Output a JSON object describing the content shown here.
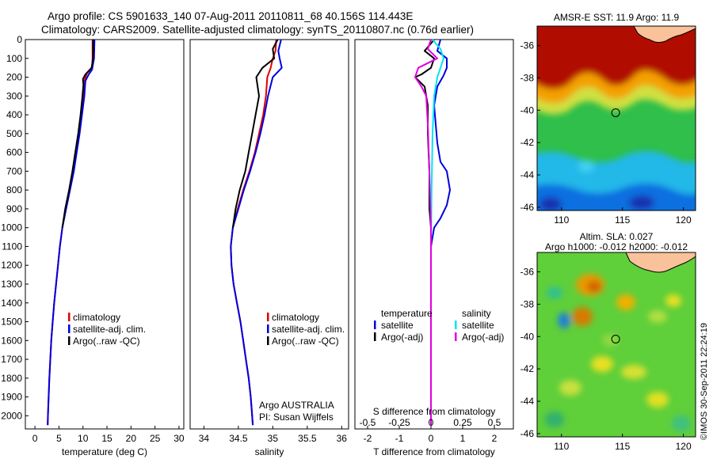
{
  "header": {
    "line1": "Argo profile: CS 5901633_140 07-Aug-2011 20110811_68 40.156S 114.443E",
    "line2": "Climatology: CARS2009. Satellite-adjusted climatology: synTS_20110807.nc (0.76d earlier)"
  },
  "colors": {
    "climatology": "#e00000",
    "satellite": "#0000e0",
    "argo": "#000000",
    "sal_satellite": "#00e5ee",
    "sal_argo": "#e000e0"
  },
  "legend_profiles": [
    {
      "label": "climatology",
      "color_key": "climatology"
    },
    {
      "label": "satellite-adj. clim.",
      "color_key": "satellite"
    },
    {
      "label": "Argo(..raw -QC)",
      "color_key": "argo"
    }
  ],
  "legend_diff": {
    "temperature_title": "temperature",
    "salinity_title": "salinity",
    "temperature_items": [
      {
        "label": "satellite",
        "color_key": "satellite"
      },
      {
        "label": "Argo(-adj)",
        "color_key": "argo"
      }
    ],
    "salinity_items": [
      {
        "label": "satellite",
        "color_key": "sal_satellite"
      },
      {
        "label": "Argo(-adj)",
        "color_key": "sal_argo"
      }
    ]
  },
  "annotations": {
    "float_owner": "Argo AUSTRALIA",
    "pi": "PI: Susan Wijffels",
    "copyright": "©IMOS 30-Sep-2011 22:24:19"
  },
  "chart_data": [
    {
      "type": "line",
      "xlabel": "temperature (deg C)",
      "ylabel": "",
      "xlim": [
        -2,
        31
      ],
      "ylim": [
        2070,
        0
      ],
      "xticks": [
        0,
        5,
        10,
        15,
        20,
        25,
        30
      ],
      "yticks": [
        0,
        100,
        200,
        300,
        400,
        500,
        600,
        700,
        800,
        900,
        1000,
        1100,
        1200,
        1300,
        1400,
        1500,
        1600,
        1700,
        1800,
        1900,
        2000
      ],
      "series": [
        {
          "name": "climatology",
          "color_key": "climatology",
          "points": [
            [
              12.0,
              0
            ],
            [
              12.0,
              100
            ],
            [
              11.9,
              150
            ],
            [
              10.8,
              180
            ],
            [
              10.3,
              220
            ],
            [
              10.1,
              300
            ],
            [
              9.7,
              400
            ],
            [
              9.2,
              500
            ],
            [
              8.6,
              600
            ],
            [
              8.0,
              700
            ],
            [
              7.2,
              800
            ],
            [
              6.4,
              900
            ],
            [
              5.7,
              1000
            ],
            [
              5.2,
              1100
            ],
            [
              4.8,
              1200
            ],
            [
              4.4,
              1300
            ],
            [
              4.0,
              1400
            ],
            [
              3.7,
              1500
            ],
            [
              3.4,
              1600
            ],
            [
              3.2,
              1700
            ],
            [
              3.0,
              1800
            ],
            [
              2.85,
              1900
            ],
            [
              2.7,
              2000
            ],
            [
              2.65,
              2050
            ]
          ]
        },
        {
          "name": "satellite-adj. clim.",
          "color_key": "satellite",
          "points": [
            [
              12.4,
              0
            ],
            [
              12.3,
              100
            ],
            [
              11.9,
              160
            ],
            [
              11.2,
              185
            ],
            [
              10.5,
              220
            ],
            [
              10.3,
              300
            ],
            [
              9.8,
              400
            ],
            [
              9.3,
              500
            ],
            [
              8.7,
              600
            ],
            [
              8.1,
              700
            ],
            [
              7.3,
              800
            ],
            [
              6.5,
              900
            ],
            [
              5.7,
              1000
            ],
            [
              5.2,
              1100
            ],
            [
              4.8,
              1200
            ],
            [
              4.4,
              1300
            ],
            [
              4.0,
              1400
            ],
            [
              3.7,
              1500
            ],
            [
              3.4,
              1600
            ],
            [
              3.2,
              1700
            ],
            [
              3.0,
              1800
            ],
            [
              2.85,
              1900
            ],
            [
              2.7,
              2000
            ],
            [
              2.65,
              2050
            ]
          ]
        },
        {
          "name": "Argo(..raw -QC)",
          "color_key": "argo",
          "points": [
            [
              12.1,
              0
            ],
            [
              12.1,
              100
            ],
            [
              11.8,
              150
            ],
            [
              10.5,
              185
            ],
            [
              10.0,
              210
            ],
            [
              10.1,
              240
            ],
            [
              9.9,
              300
            ],
            [
              9.5,
              400
            ],
            [
              9.0,
              500
            ],
            [
              8.4,
              600
            ],
            [
              7.8,
              700
            ],
            [
              7.1,
              800
            ],
            [
              6.3,
              900
            ],
            [
              5.7,
              1000
            ]
          ]
        }
      ]
    },
    {
      "type": "line",
      "xlabel": "salinity",
      "ylabel": "",
      "xlim": [
        33.8,
        36.1
      ],
      "ylim": [
        2070,
        0
      ],
      "xticks": [
        34,
        34.5,
        35,
        35.5,
        36
      ],
      "tick_labels": [
        "34",
        "34.5",
        "35",
        "35.5",
        "36"
      ],
      "series": [
        {
          "name": "climatology",
          "color_key": "climatology",
          "points": [
            [
              35.05,
              0
            ],
            [
              35.04,
              60
            ],
            [
              35.0,
              100
            ],
            [
              34.97,
              150
            ],
            [
              34.92,
              200
            ],
            [
              34.9,
              300
            ],
            [
              34.86,
              400
            ],
            [
              34.8,
              500
            ],
            [
              34.74,
              600
            ],
            [
              34.66,
              700
            ],
            [
              34.57,
              800
            ],
            [
              34.49,
              900
            ],
            [
              34.42,
              1000
            ],
            [
              34.39,
              1100
            ],
            [
              34.4,
              1200
            ],
            [
              34.43,
              1300
            ],
            [
              34.48,
              1400
            ],
            [
              34.53,
              1500
            ],
            [
              34.57,
              1600
            ],
            [
              34.61,
              1700
            ],
            [
              34.65,
              1800
            ],
            [
              34.68,
              1900
            ],
            [
              34.7,
              2000
            ],
            [
              34.71,
              2050
            ]
          ]
        },
        {
          "name": "satellite-adj. clim.",
          "color_key": "satellite",
          "points": [
            [
              35.12,
              0
            ],
            [
              35.08,
              60
            ],
            [
              35.1,
              100
            ],
            [
              35.13,
              150
            ],
            [
              35.0,
              200
            ],
            [
              34.93,
              300
            ],
            [
              34.88,
              400
            ],
            [
              34.82,
              500
            ],
            [
              34.75,
              600
            ],
            [
              34.67,
              700
            ],
            [
              34.58,
              800
            ],
            [
              34.5,
              900
            ],
            [
              34.42,
              1000
            ],
            [
              34.39,
              1100
            ],
            [
              34.4,
              1200
            ],
            [
              34.43,
              1300
            ],
            [
              34.48,
              1400
            ],
            [
              34.53,
              1500
            ],
            [
              34.57,
              1600
            ],
            [
              34.61,
              1700
            ],
            [
              34.65,
              1800
            ],
            [
              34.68,
              1900
            ],
            [
              34.7,
              2000
            ],
            [
              34.71,
              2050
            ]
          ]
        },
        {
          "name": "Argo(..raw -QC)",
          "color_key": "argo",
          "points": [
            [
              35.07,
              0
            ],
            [
              35.0,
              50
            ],
            [
              35.02,
              100
            ],
            [
              34.85,
              150
            ],
            [
              34.76,
              200
            ],
            [
              34.78,
              250
            ],
            [
              34.8,
              300
            ],
            [
              34.75,
              400
            ],
            [
              34.7,
              500
            ],
            [
              34.65,
              600
            ],
            [
              34.6,
              700
            ],
            [
              34.52,
              800
            ],
            [
              34.46,
              900
            ],
            [
              34.42,
              1000
            ]
          ]
        }
      ]
    },
    {
      "type": "line",
      "xlabel": "T difference from climatology",
      "ylabel": "",
      "top_axis_label": "S difference from climatology",
      "xlim": [
        -2.4,
        2.6
      ],
      "ylim": [
        2070,
        0
      ],
      "xticks": [
        -2,
        -1,
        0,
        1,
        2
      ],
      "top_ticks": [
        "-0.5",
        "-0.25",
        "0",
        "0.25",
        "0.5"
      ],
      "series": [
        {
          "name": "temperature satellite",
          "color_key": "satellite",
          "points": [
            [
              0.3,
              0
            ],
            [
              0.2,
              60
            ],
            [
              0.5,
              100
            ],
            [
              0.5,
              150
            ],
            [
              0.4,
              190
            ],
            [
              0.2,
              250
            ],
            [
              0.1,
              350
            ],
            [
              0.15,
              450
            ],
            [
              0.2,
              550
            ],
            [
              0.3,
              650
            ],
            [
              0.5,
              700
            ],
            [
              0.6,
              800
            ],
            [
              0.5,
              880
            ],
            [
              0.3,
              950
            ],
            [
              0.1,
              1000
            ],
            [
              0.0,
              1100
            ],
            [
              0.0,
              2050
            ]
          ]
        },
        {
          "name": "temperature Argo(-adj)",
          "color_key": "argo",
          "points": [
            [
              0.1,
              0
            ],
            [
              -0.2,
              60
            ],
            [
              0.1,
              100
            ],
            [
              0.0,
              150
            ],
            [
              -0.3,
              185
            ],
            [
              -0.5,
              200
            ],
            [
              -0.2,
              250
            ],
            [
              -0.1,
              350
            ],
            [
              -0.1,
              500
            ],
            [
              -0.05,
              700
            ],
            [
              -0.05,
              900
            ],
            [
              0.0,
              1000
            ]
          ]
        },
        {
          "name": "salinity satellite",
          "color_key": "sal_satellite",
          "points": [
            [
              0.05,
              0
            ],
            [
              0.3,
              50
            ],
            [
              0.4,
              100
            ],
            [
              0.3,
              150
            ],
            [
              0.2,
              200
            ],
            [
              0.1,
              300
            ],
            [
              0.05,
              500
            ],
            [
              0.02,
              800
            ],
            [
              0.0,
              1100
            ],
            [
              0.0,
              2050
            ]
          ]
        },
        {
          "name": "salinity Argo(-adj)",
          "color_key": "sal_argo",
          "points": [
            [
              0.0,
              0
            ],
            [
              -0.1,
              50
            ],
            [
              0.2,
              100
            ],
            [
              -0.4,
              150
            ],
            [
              -0.5,
              200
            ],
            [
              -0.3,
              250
            ],
            [
              -0.15,
              300
            ],
            [
              -0.1,
              450
            ],
            [
              -0.05,
              700
            ],
            [
              0.0,
              1000
            ],
            [
              0.0,
              2050
            ]
          ]
        }
      ]
    },
    {
      "type": "heatmap",
      "title": "AMSR-E SST: 11.9 Argo: 11.9",
      "xlim": [
        108,
        121
      ],
      "ylim": [
        -46.2,
        -34.8
      ],
      "xticks": [
        110,
        115,
        120
      ],
      "yticks": [
        -36,
        -38,
        -40,
        -42,
        -44,
        -46
      ],
      "argo_position": [
        114.443,
        -40.156
      ]
    },
    {
      "type": "heatmap",
      "title": "Altim. SLA: 0.027",
      "subtitle": "Argo h1000: -0.012 h2000: -0.012",
      "xlim": [
        108,
        121
      ],
      "ylim": [
        -46.2,
        -34.8
      ],
      "xticks": [
        110,
        115,
        120
      ],
      "yticks": [
        -36,
        -38,
        -40,
        -42,
        -44,
        -46
      ],
      "argo_position": [
        114.443,
        -40.156
      ]
    }
  ]
}
